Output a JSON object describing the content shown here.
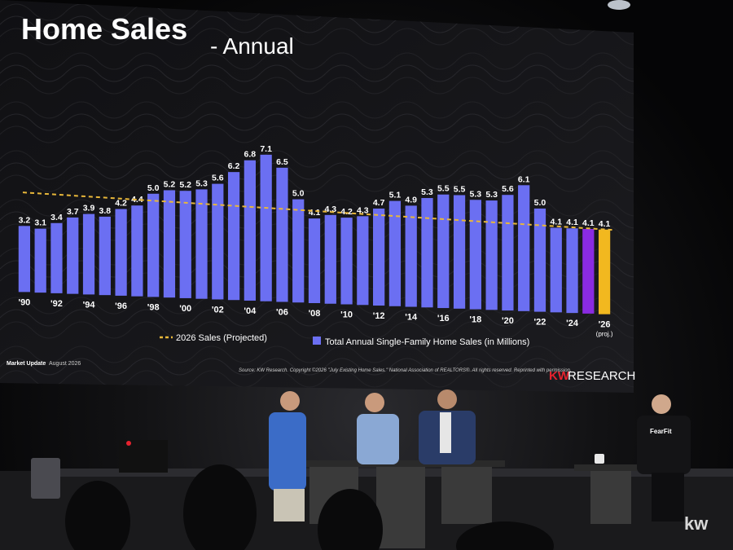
{
  "slide": {
    "title": "Home Sales",
    "title_suffix": "- Annual",
    "footer_left": "Market Update",
    "footer_date": "August 2026",
    "source": "Source: KW Research. Copyright ©2026 \"July Existing Home Sales.\" National Association of REALTORS®. All rights reserved. Reprinted with permission.",
    "brand_kw": "KW",
    "brand_research": "RESEARCH"
  },
  "chart_data": {
    "type": "bar",
    "categories": [
      "'90",
      "'91",
      "'92",
      "'93",
      "'94",
      "'95",
      "'96",
      "'97",
      "'98",
      "'99",
      "'00",
      "'01",
      "'02",
      "'03",
      "'04",
      "'05",
      "'06",
      "'07",
      "'08",
      "'09",
      "'10",
      "'11",
      "'12",
      "'13",
      "'14",
      "'15",
      "'16",
      "'17",
      "'18",
      "'19",
      "'20",
      "'21",
      "'22",
      "'23",
      "'24",
      "'25",
      "'26"
    ],
    "tick_labels": [
      "'90",
      "'92",
      "'94",
      "'96",
      "'98",
      "'00",
      "'02",
      "'04",
      "'06",
      "'08",
      "'10",
      "'12",
      "'14",
      "'16",
      "'18",
      "'20",
      "'22",
      "'24",
      "'26"
    ],
    "tick_note": "(proj.)",
    "values": [
      3.2,
      3.1,
      3.4,
      3.7,
      3.9,
      3.8,
      4.2,
      4.4,
      5.0,
      5.2,
      5.2,
      5.3,
      5.6,
      6.2,
      6.8,
      7.1,
      6.5,
      5.0,
      4.1,
      4.3,
      4.2,
      4.3,
      4.7,
      5.1,
      4.9,
      5.3,
      5.5,
      5.5,
      5.3,
      5.3,
      5.6,
      6.1,
      5.0,
      4.1,
      4.1,
      4.1,
      4.1
    ],
    "data_labels": [
      "3.2",
      "3.1",
      "3.4",
      "3.7",
      "3.9",
      "3.8",
      "4.2",
      "4.4",
      "5.0",
      "5.2",
      "5.2",
      "5.3",
      "5.6",
      "6.2",
      "6.8",
      "7.1",
      "6.5",
      "5.0",
      "4.1",
      "4.3",
      "4.2",
      "4.3",
      "4.7",
      "5.1",
      "4.9",
      "5.3",
      "5.5",
      "5.5",
      "5.3",
      "5.3",
      "5.6",
      "6.1",
      "5.0",
      "4.1",
      "4.1",
      "4.1",
      "4.1"
    ],
    "bar_colors": {
      "default": "#6b6ff2",
      "highlight_2025": "#8a2be2",
      "projected_2026": "#f2b81f"
    },
    "reference_line": {
      "name": "2026 Sales (Projected)",
      "value": 4.1,
      "color": "#e8b73a",
      "style": "dashed"
    },
    "legend": [
      {
        "name": "2026 Sales (Projected)",
        "marker": "dashed-line",
        "color": "#e8b73a"
      },
      {
        "name": "Total Annual Single-Family Home Sales (in Millions)",
        "marker": "square",
        "color": "#6b6ff2"
      }
    ],
    "ylim": [
      0,
      7.5
    ],
    "grid": false
  },
  "stage": {
    "screen_brand_color": "#e6222e",
    "podium_logo": "kw",
    "shirt_text": "FearFit"
  }
}
